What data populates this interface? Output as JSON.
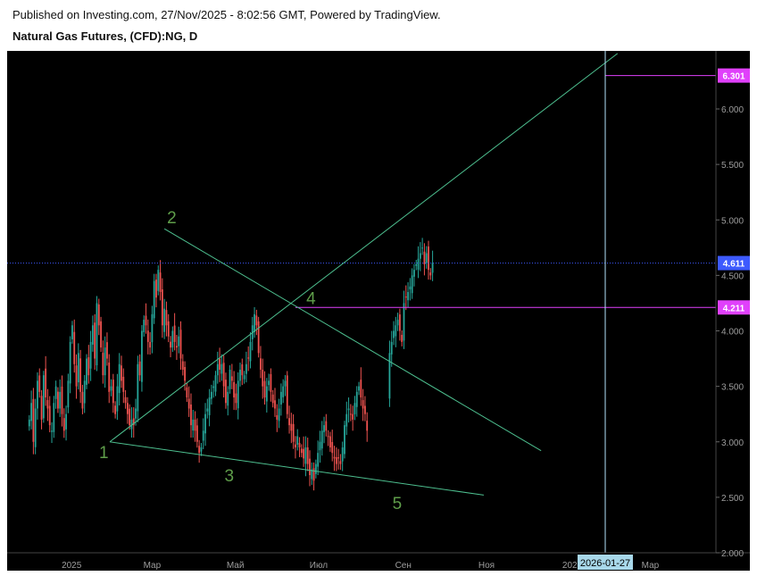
{
  "header": {
    "published": "Published on Investing.com, 27/Nov/2025 - 8:02:56 GMT, Powered by TradingView.",
    "instrument": "Natural Gas Futures, (CFD):NG, D"
  },
  "colors": {
    "background": "#000000",
    "up_candle": "#26a69a",
    "down_candle": "#ef5350",
    "trend_line": "#4dbf8f",
    "wave_label": "#5f9e4a",
    "horizontal_line": "#e040fb",
    "current_price_line": "#3d5afe",
    "crosshair": "#b3e5fc"
  },
  "chart_data": {
    "type": "candlestick",
    "y_axis": {
      "ticks": [
        2.0,
        2.5,
        3.0,
        3.5,
        4.0,
        4.5,
        5.0,
        5.5,
        6.0
      ],
      "tick_labels": [
        "2.000",
        "2.500",
        "3.000",
        "3.500",
        "4.000",
        "4.500",
        "5.000",
        "5.500",
        "6.000"
      ],
      "range": [
        2.0,
        6.5
      ]
    },
    "x_axis": {
      "tick_labels": [
        "2025",
        "Мар",
        "Май",
        "Июл",
        "Сен",
        "Ноя",
        "202",
        "Мар"
      ],
      "crosshair_label": "2026-01-27"
    },
    "price_labels": [
      {
        "value": 6.301,
        "text": "6.301",
        "role": "level"
      },
      {
        "value": 4.611,
        "text": "4.611",
        "role": "last-price"
      },
      {
        "value": 4.211,
        "text": "4.211",
        "role": "level"
      }
    ],
    "wave_labels": [
      {
        "text": "1",
        "x": "2025-01-29",
        "y": 3.0
      },
      {
        "text": "2",
        "x": "2025-03-10",
        "y": 4.92
      },
      {
        "text": "3",
        "x": "2025-04-27",
        "y": 2.87
      },
      {
        "text": "4",
        "x": "2025-06-20",
        "y": 4.21
      },
      {
        "text": "5",
        "x": "2025-08-28",
        "y": 2.65
      }
    ],
    "trend_lines": [
      {
        "from": {
          "x": "2025-01-29",
          "y": 3.0
        },
        "to": {
          "x": "2026-02-05",
          "y": 6.5
        }
      },
      {
        "from": {
          "x": "2025-03-10",
          "y": 4.92
        },
        "to": {
          "x": "2025-12-11",
          "y": 2.92
        }
      },
      {
        "from": {
          "x": "2025-01-29",
          "y": 3.0
        },
        "to": {
          "x": "2025-10-30",
          "y": 2.52
        }
      }
    ],
    "horizontal_levels": [
      {
        "value": 6.301,
        "from_x": "2026-01-27"
      },
      {
        "value": 4.211,
        "from_x": "2025-06-14"
      }
    ],
    "current_price": 4.611,
    "crosshair_x": "2026-01-27",
    "candle_columns": {
      "start_date": "2024-12-01",
      "days_per_column": 1.5,
      "close_values": [
        3.2,
        3.35,
        3.0,
        3.3,
        3.55,
        3.45,
        3.2,
        3.6,
        3.4,
        3.3,
        3.15,
        3.1,
        3.35,
        3.5,
        3.3,
        3.45,
        3.25,
        3.1,
        3.25,
        3.55,
        3.9,
        4.05,
        3.7,
        3.5,
        3.8,
        3.45,
        3.3,
        3.55,
        3.75,
        3.6,
        3.9,
        4.05,
        3.75,
        4.25,
        4.05,
        3.85,
        3.6,
        3.85,
        3.75,
        3.45,
        3.5,
        3.35,
        3.25,
        3.5,
        3.7,
        3.55,
        3.45,
        3.35,
        3.25,
        3.15,
        3.2,
        3.15,
        3.3,
        3.7,
        3.6,
        4.0,
        4.1,
        4.05,
        3.9,
        3.85,
        4.15,
        4.45,
        4.3,
        4.55,
        4.35,
        4.05,
        4.2,
        4.05,
        3.95,
        3.85,
        4.0,
        3.9,
        3.85,
        3.95,
        3.75,
        3.65,
        3.55,
        3.4,
        3.3,
        3.15,
        3.2,
        3.1,
        3.0,
        2.9,
        2.95,
        3.1,
        3.25,
        3.3,
        3.4,
        3.45,
        3.5,
        3.6,
        3.7,
        3.65,
        3.7,
        3.5,
        3.35,
        3.45,
        3.65,
        3.55,
        3.4,
        3.35,
        3.55,
        3.65,
        3.6,
        3.6,
        3.7,
        3.75,
        3.9,
        4.05,
        4.15,
        4.05,
        3.8,
        3.65,
        3.5,
        3.4,
        3.5,
        3.55,
        3.45,
        3.35,
        3.3,
        3.2,
        3.3,
        3.45,
        3.5,
        3.55,
        3.25,
        3.15,
        3.1,
        3.0,
        2.95,
        3.05,
        2.95,
        2.9,
        2.85,
        2.95,
        2.8,
        2.7,
        2.75,
        2.65,
        2.8,
        2.9,
        3.0,
        3.1,
        3.15,
        3.1,
        3.05,
        2.95,
        2.9,
        2.85,
        2.8,
        2.85,
        2.8,
        2.95,
        3.15,
        3.25,
        3.3,
        3.25,
        3.2,
        3.35,
        3.45,
        3.5,
        3.4,
        3.3,
        3.25,
        3.1,
        3.0,
        2.95,
        2.9,
        3.1,
        3.3,
        3.35,
        3.3,
        3.2,
        3.3,
        3.45,
        3.8,
        3.9,
        4.0,
        4.05,
        4.1,
        4.0,
        3.9,
        4.25,
        4.3,
        4.35,
        4.4,
        4.5,
        4.55,
        4.6,
        4.65,
        4.7,
        4.75,
        4.6,
        4.7,
        4.55,
        4.5,
        4.611
      ],
      "gaps": [
        [
          166,
          176
        ]
      ]
    }
  }
}
